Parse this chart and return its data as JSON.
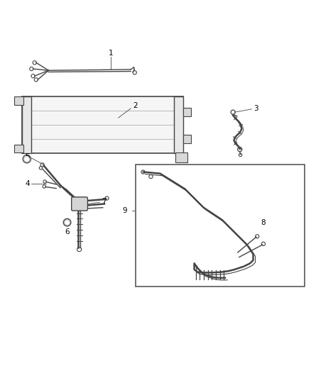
{
  "background_color": "#ffffff",
  "line_color": "#444444",
  "label_color": "#000000",
  "fig_width": 4.38,
  "fig_height": 5.33,
  "dpi": 100
}
